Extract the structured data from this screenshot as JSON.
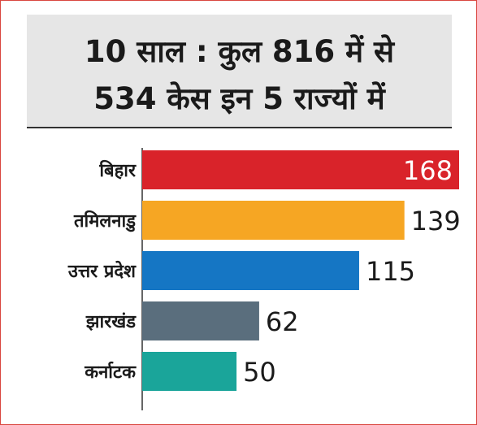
{
  "title_line1": "10 साल : कुल 816 में से",
  "title_line2": "534 केस इन 5 राज्यों में",
  "colors": {
    "border": "#d9473f",
    "header_bg": "#e6e6e6",
    "axis": "#333333",
    "value_inside": "#ffffff",
    "value_outside": "#1a1a1a"
  },
  "chart_data": {
    "type": "bar",
    "orientation": "horizontal",
    "title": "10 साल : कुल 816 में से 534 केस इन 5 राज्यों में",
    "categories": [
      "बिहार",
      "तमिलनाडु",
      "उत्तर प्रदेश",
      "झारखंड",
      "कर्नाटक"
    ],
    "values": [
      168,
      139,
      115,
      62,
      50
    ],
    "bar_colors": [
      "#d9232a",
      "#f6a623",
      "#1576c4",
      "#5a6e7d",
      "#1aa59a"
    ],
    "value_label_inside": [
      true,
      false,
      false,
      false,
      false
    ],
    "xlim": [
      0,
      168
    ],
    "xlabel": "",
    "ylabel": "",
    "grid": false,
    "legend": "none"
  }
}
